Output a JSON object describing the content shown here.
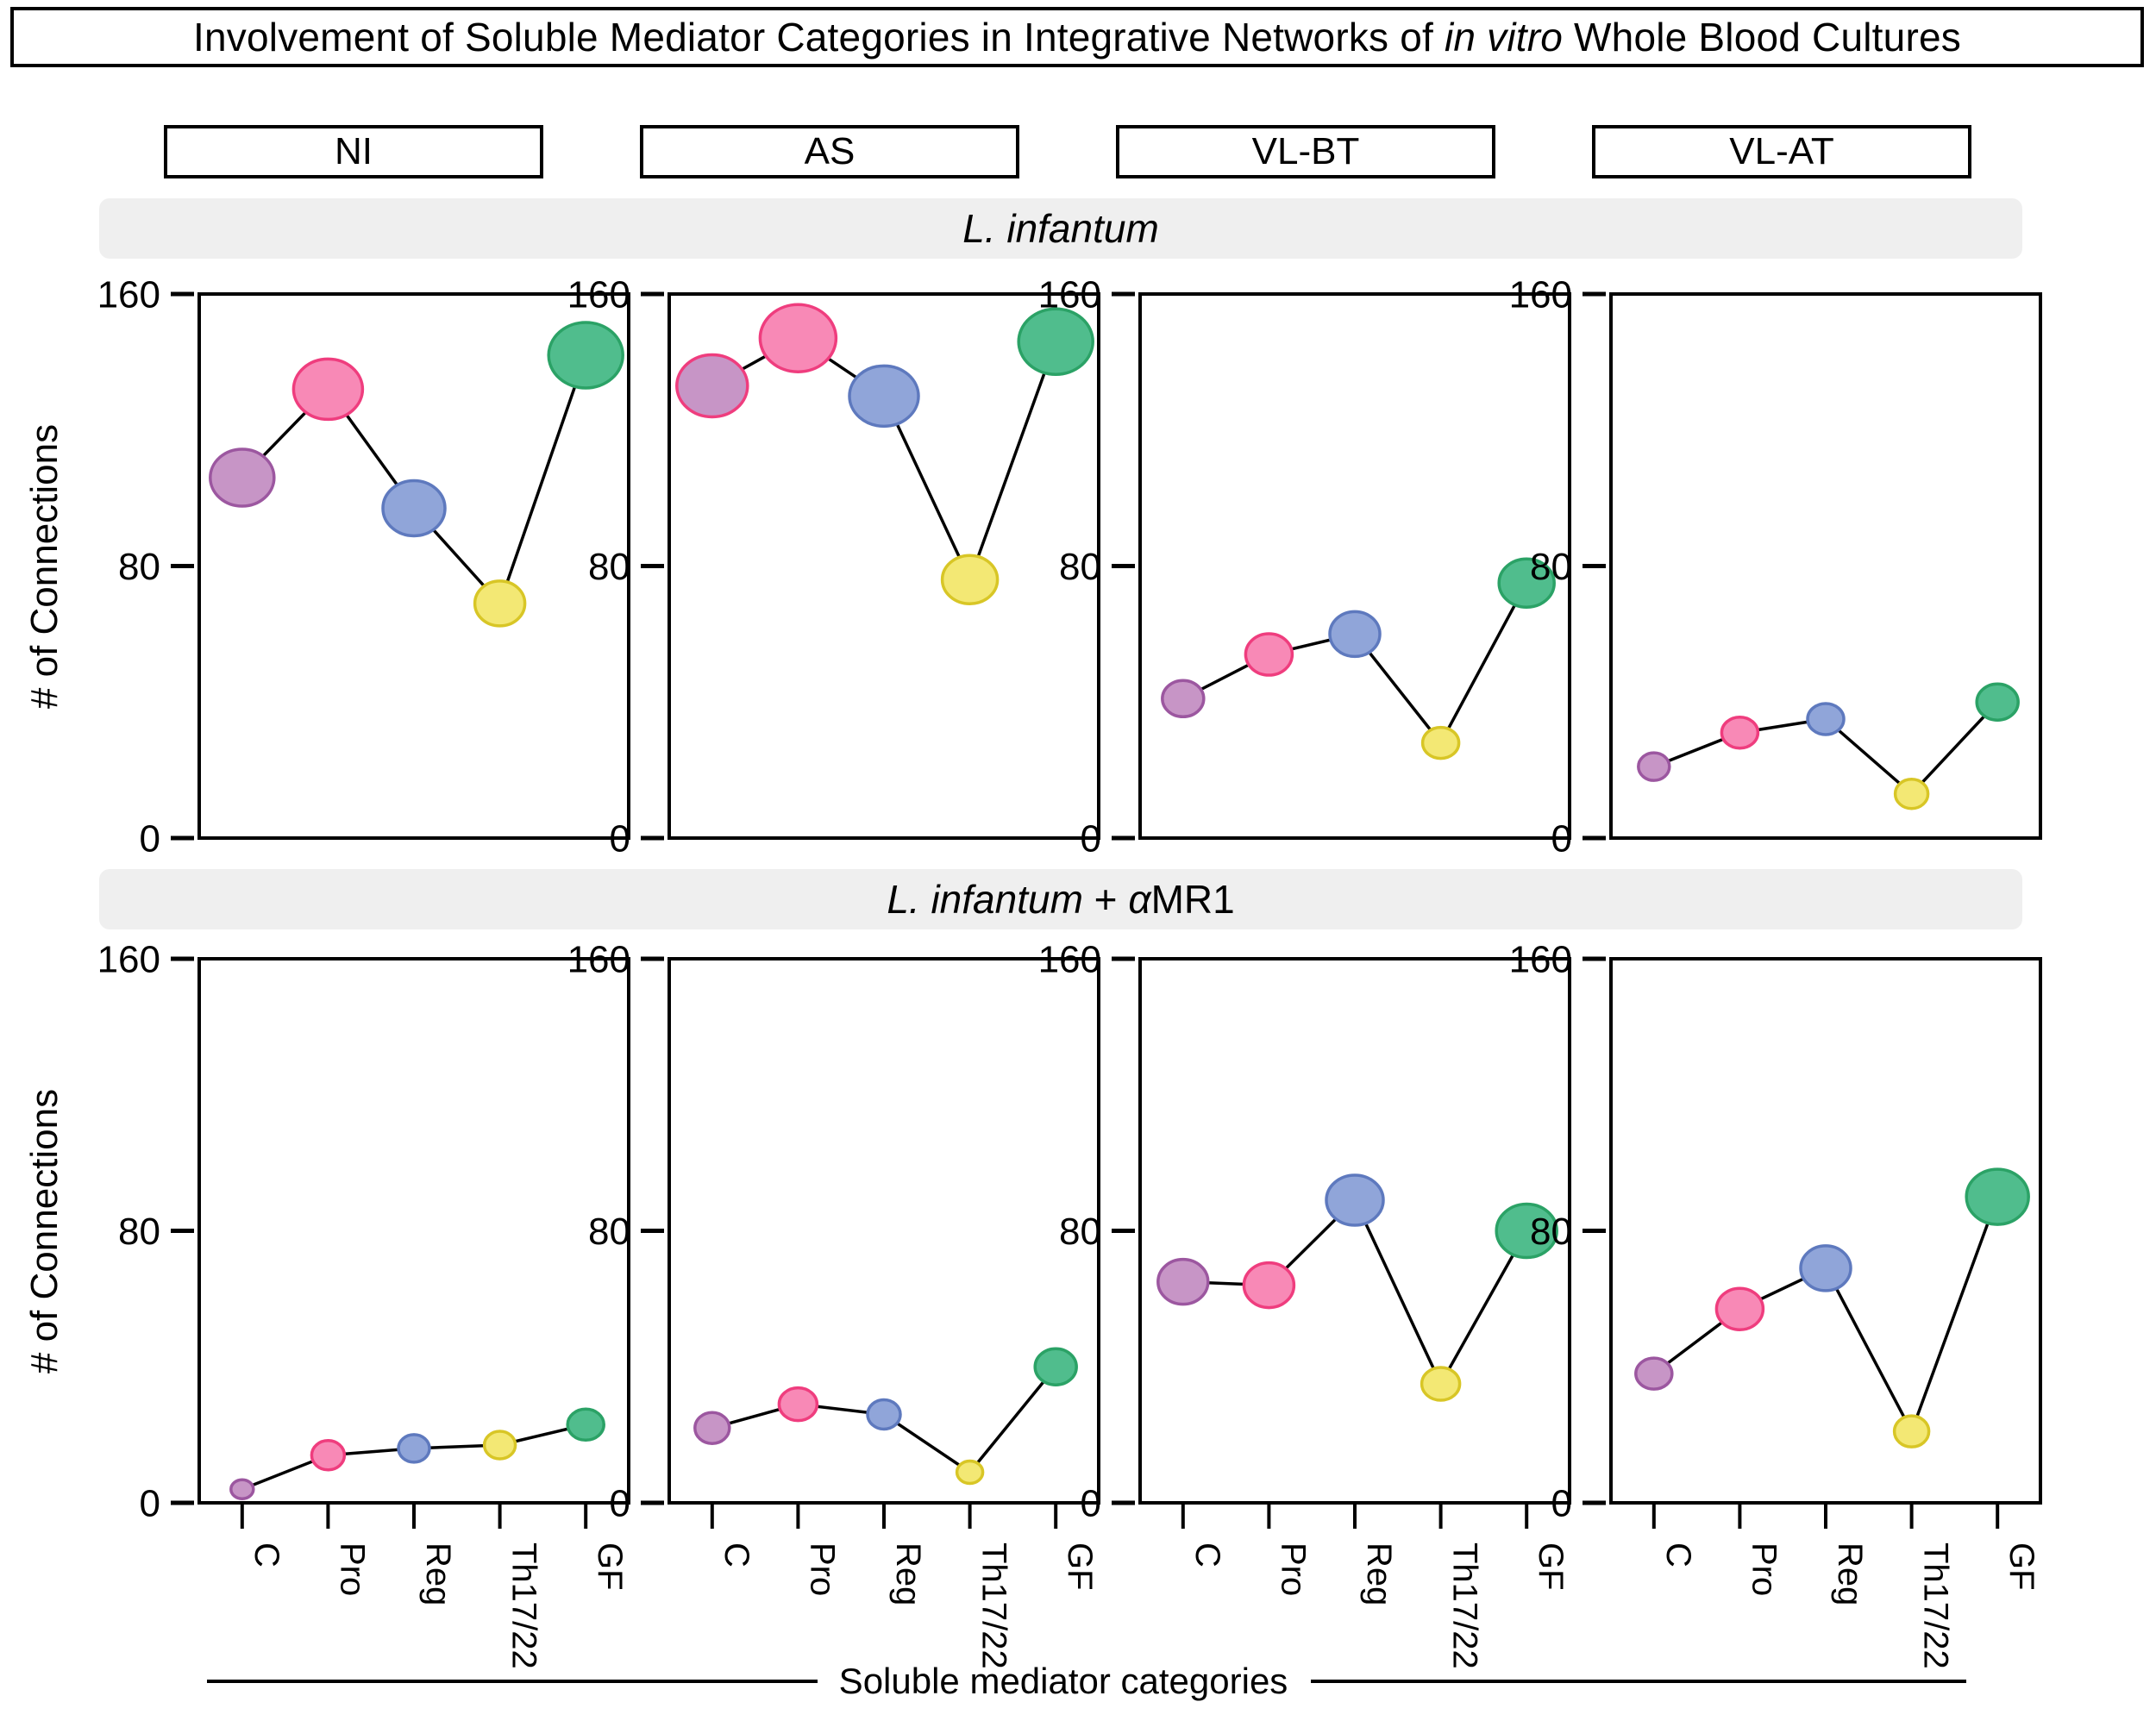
{
  "title_segments": [
    {
      "text": "Involvement of Soluble Mediator Categories in Integrative Networks of ",
      "italic": false
    },
    {
      "text": "in vitro",
      "italic": true
    },
    {
      "text": " Whole Blood Cultures",
      "italic": false
    }
  ],
  "columns": [
    "NI",
    "AS",
    "VL-BT",
    "VL-AT"
  ],
  "bands": [
    {
      "segments": [
        {
          "text": "L. infantum",
          "italic": true
        }
      ]
    },
    {
      "segments": [
        {
          "text": "L. infantum",
          "italic": true
        },
        {
          "text": " + ",
          "italic": false
        },
        {
          "text": "α",
          "italic": true
        },
        {
          "text": "MR1",
          "italic": false
        }
      ]
    }
  ],
  "chart_data": {
    "type": "bubble-line",
    "categories": [
      "C",
      "Pro",
      "Reg",
      "Th17/22",
      "GF"
    ],
    "category_styles": [
      {
        "name": "C",
        "fill": "#C795C6",
        "stroke": "#9C57A0"
      },
      {
        "name": "Pro",
        "fill": "#F889B6",
        "stroke": "#EF3D7E"
      },
      {
        "name": "Reg",
        "fill": "#90A5D9",
        "stroke": "#5E79BE"
      },
      {
        "name": "Th17/22",
        "fill": "#F3E874",
        "stroke": "#D8C626"
      },
      {
        "name": "GF",
        "fill": "#50BD8D",
        "stroke": "#2BA266"
      }
    ],
    "ylabel": "# of Connections",
    "xlabel": "Soluble mediator categories",
    "ylim": [
      0,
      160
    ],
    "yticks": [
      0,
      80,
      160
    ],
    "columns": [
      "NI",
      "AS",
      "VL-BT",
      "VL-AT"
    ],
    "rows": [
      {
        "label": "L. infantum",
        "panels": [
          {
            "condition": "NI",
            "values": [
              106,
              132,
              97,
              69,
              142
            ],
            "sizes": [
              37,
              40,
              36,
              29,
              43
            ]
          },
          {
            "condition": "AS",
            "values": [
              133,
              147,
              130,
              76,
              146
            ],
            "sizes": [
              41,
              44,
              40,
              32,
              43
            ],
            "point_stroke_overrides": {
              "0": "#EF3D7E"
            }
          },
          {
            "condition": "VL-BT",
            "values": [
              41,
              54,
              60,
              28,
              75
            ],
            "sizes": [
              24,
              27,
              29,
              21,
              32
            ]
          },
          {
            "condition": "VL-AT",
            "values": [
              21,
              31,
              35,
              13,
              40
            ],
            "sizes": [
              18,
              21,
              21,
              19,
              24
            ]
          }
        ]
      },
      {
        "label": "L. infantum + αMR1",
        "panels": [
          {
            "condition": "NI",
            "values": [
              4,
              14,
              16,
              17,
              23
            ],
            "sizes": [
              13,
              19,
              18,
              18,
              21
            ]
          },
          {
            "condition": "AS",
            "values": [
              22,
              29,
              26,
              9,
              40
            ],
            "sizes": [
              20,
              22,
              19,
              15,
              24
            ]
          },
          {
            "condition": "VL-BT",
            "values": [
              65,
              64,
              89,
              35,
              80
            ],
            "sizes": [
              29,
              29,
              33,
              22,
              35
            ]
          },
          {
            "condition": "VL-AT",
            "values": [
              38,
              57,
              69,
              21,
              90
            ],
            "sizes": [
              21,
              27,
              29,
              20,
              36
            ]
          }
        ]
      }
    ]
  }
}
